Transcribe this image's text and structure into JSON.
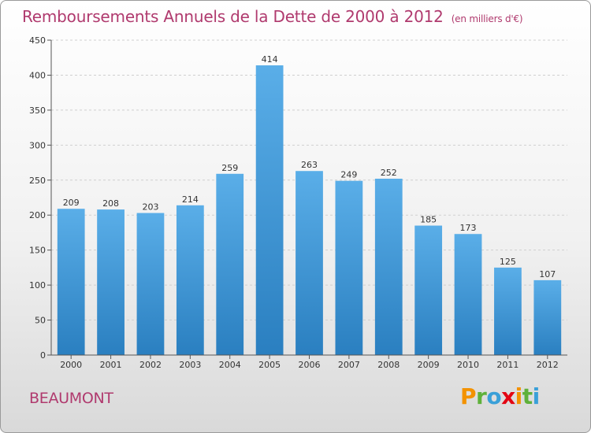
{
  "header": {
    "title": "Remboursements Annuels de la Dette de 2000 à 2012",
    "unit": "(en milliers d'€)"
  },
  "footer": {
    "town": "BEAUMONT",
    "logo": {
      "letters": [
        "P",
        "r",
        "o",
        "x",
        "i",
        "t",
        "i"
      ],
      "colors": [
        "#f39200",
        "#5fb13a",
        "#3aa0d8",
        "#e30613",
        "#f39200",
        "#5fb13a",
        "#3aa0d8"
      ]
    }
  },
  "chart_data": {
    "type": "bar",
    "categories": [
      "2000",
      "2001",
      "2002",
      "2003",
      "2004",
      "2005",
      "2006",
      "2007",
      "2008",
      "2009",
      "2010",
      "2011",
      "2012"
    ],
    "values": [
      209,
      208,
      203,
      214,
      259,
      414,
      263,
      249,
      252,
      185,
      173,
      125,
      107
    ],
    "ylim": [
      0,
      450
    ],
    "yticks": [
      0,
      50,
      100,
      150,
      200,
      250,
      300,
      350,
      400,
      450
    ],
    "grid": true,
    "bar_color_top": "#5aaee8",
    "bar_color_bottom": "#2a7fc0"
  }
}
